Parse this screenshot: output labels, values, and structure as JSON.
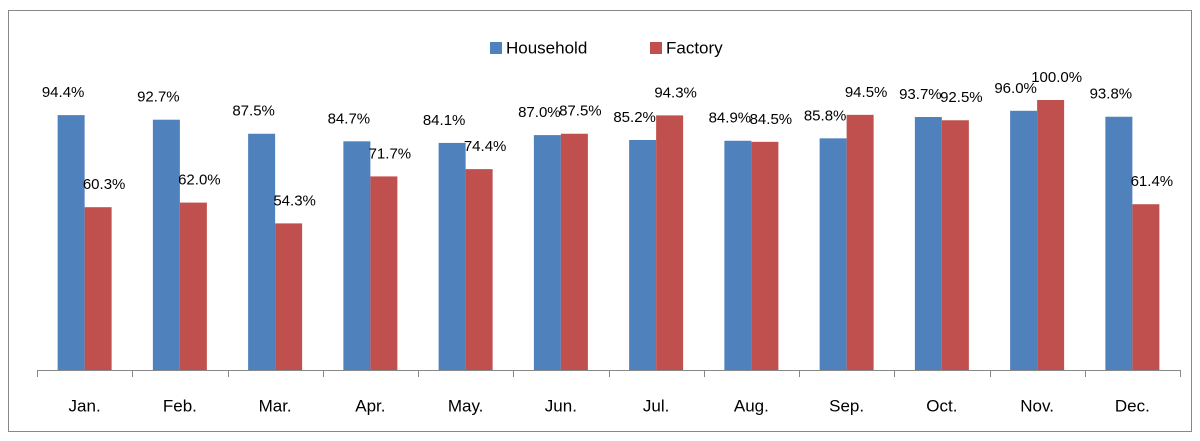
{
  "chart_data": {
    "type": "bar",
    "categories": [
      "Jan.",
      "Feb.",
      "Mar.",
      "Apr.",
      "May.",
      "Jun.",
      "Jul.",
      "Aug.",
      "Sep.",
      "Oct.",
      "Nov.",
      "Dec."
    ],
    "series": [
      {
        "name": "Household",
        "color": "#4f81bd",
        "values": [
          94.4,
          92.7,
          87.5,
          84.7,
          84.1,
          87.0,
          85.2,
          84.9,
          85.8,
          93.7,
          96.0,
          93.8
        ],
        "value_labels": [
          "94.4%",
          "92.7%",
          "87.5%",
          "84.7%",
          "84.1%",
          "87.0%",
          "85.2%",
          "84.9%",
          "85.8%",
          "93.7%",
          "96.0%",
          "93.8%"
        ]
      },
      {
        "name": "Factory",
        "color": "#c0504d",
        "values": [
          60.3,
          62.0,
          54.3,
          71.7,
          74.4,
          87.5,
          94.3,
          84.5,
          94.5,
          92.5,
          100.0,
          61.4
        ],
        "value_labels": [
          "60.3%",
          "62.0%",
          "54.3%",
          "71.7%",
          "74.4%",
          "87.5%",
          "94.3%",
          "84.5%",
          "94.5%",
          "92.5%",
          "100.0%",
          "61.4%"
        ]
      }
    ],
    "ylim": [
      0,
      120
    ],
    "legend": "top"
  }
}
